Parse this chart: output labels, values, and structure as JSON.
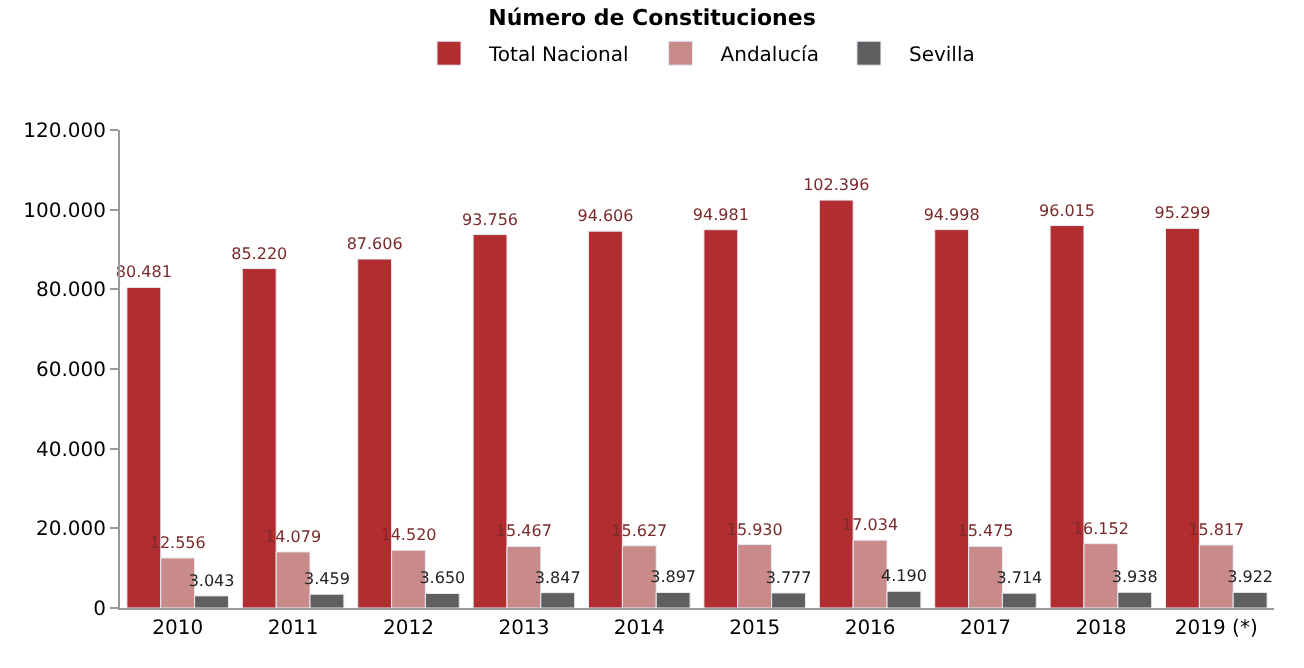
{
  "chart_data": {
    "type": "bar",
    "title": "Número de Constituciones",
    "categories": [
      "2010",
      "2011",
      "2012",
      "2013",
      "2014",
      "2015",
      "2016",
      "2017",
      "2018",
      "2019 (*)"
    ],
    "series": [
      {
        "name": "Total Nacional",
        "color": "#b22d2f",
        "values": [
          80481,
          85220,
          87606,
          93756,
          94606,
          94981,
          102396,
          94998,
          96015,
          95299
        ],
        "value_labels": [
          "80.481",
          "85.220",
          "87.606",
          "93.756",
          "94.606",
          "94.981",
          "102.396",
          "94.998",
          "96.015",
          "95.299"
        ]
      },
      {
        "name": "Andalucía",
        "color": "#c98a8a",
        "values": [
          12556,
          14079,
          14520,
          15467,
          15627,
          15930,
          17034,
          15475,
          16152,
          15817
        ],
        "value_labels": [
          "12.556",
          "14.079",
          "14.520",
          "15.467",
          "15.627",
          "15.930",
          "17.034",
          "15.475",
          "16.152",
          "15.817"
        ]
      },
      {
        "name": "Sevilla",
        "color": "#5f5f5f",
        "values": [
          3043,
          3459,
          3650,
          3847,
          3897,
          3777,
          4190,
          3714,
          3938,
          3922
        ],
        "value_labels": [
          "3.043",
          "3.459",
          "3.650",
          "3.847",
          "3.897",
          "3.777",
          "4.190",
          "3.714",
          "3.938",
          "3.922"
        ]
      }
    ],
    "ylim": [
      0,
      120000
    ],
    "yticks": [
      {
        "value": 0,
        "label": "0"
      },
      {
        "value": 20000,
        "label": "20.000"
      },
      {
        "value": 40000,
        "label": "40.000"
      },
      {
        "value": 60000,
        "label": "60.000"
      },
      {
        "value": 80000,
        "label": "80.000"
      },
      {
        "value": 100000,
        "label": "100.000"
      },
      {
        "value": 120000,
        "label": "120.000"
      }
    ],
    "legend": "top"
  }
}
